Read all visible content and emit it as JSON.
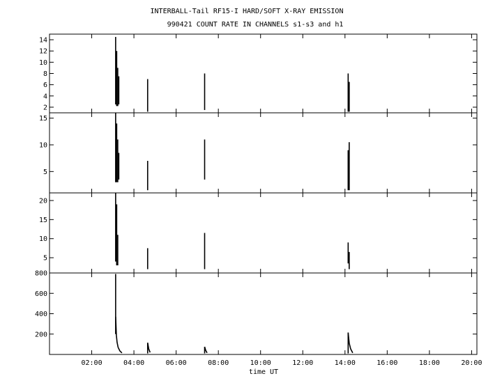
{
  "chart_data": {
    "type": "line",
    "title": "INTERBALL-Tail RF15-I HARD/SOFT X-RAY EMISSION",
    "subtitle": "990421  COUNT RATE IN CHANNELS s1-s3 and h1",
    "xlabel": "time UT",
    "xlim": [
      "00:00",
      "20:15"
    ],
    "x_ticks": [
      "02:00",
      "04:00",
      "06:00",
      "08:00",
      "10:00",
      "12:00",
      "14:00",
      "16:00",
      "18:00",
      "20:00"
    ],
    "grid": false,
    "panels": [
      {
        "name": "s1",
        "ylim": [
          1,
          15
        ],
        "y_ticks": [
          2,
          4,
          6,
          8,
          10,
          12,
          14
        ],
        "bursts": [
          {
            "x": "03:08",
            "ymin": 2.5,
            "ymax": 14.5
          },
          {
            "x": "03:11",
            "ymin": 2.2,
            "ymax": 12.0
          },
          {
            "x": "03:14",
            "ymin": 2.2,
            "ymax": 9.0
          },
          {
            "x": "03:17",
            "ymin": 2.5,
            "ymax": 7.5
          },
          {
            "x": "04:39",
            "ymin": 1.2,
            "ymax": 7.0
          },
          {
            "x": "07:21",
            "ymin": 1.5,
            "ymax": 8.0
          },
          {
            "x": "14:09",
            "ymin": 1.2,
            "ymax": 8.0
          },
          {
            "x": "14:12",
            "ymin": 1.2,
            "ymax": 6.5
          }
        ]
      },
      {
        "name": "s2",
        "ylim": [
          1,
          16
        ],
        "y_ticks": [
          5,
          10,
          15
        ],
        "bursts": [
          {
            "x": "03:08",
            "ymin": 3.0,
            "ymax": 16.0
          },
          {
            "x": "03:11",
            "ymin": 3.0,
            "ymax": 14.0
          },
          {
            "x": "03:14",
            "ymin": 3.0,
            "ymax": 11.0
          },
          {
            "x": "03:17",
            "ymin": 3.5,
            "ymax": 8.5
          },
          {
            "x": "04:39",
            "ymin": 1.5,
            "ymax": 7.0
          },
          {
            "x": "07:21",
            "ymin": 3.5,
            "ymax": 11.0
          },
          {
            "x": "14:09",
            "ymin": 1.5,
            "ymax": 9.0
          },
          {
            "x": "14:12",
            "ymin": 1.5,
            "ymax": 10.5
          }
        ]
      },
      {
        "name": "s3",
        "ylim": [
          1,
          22
        ],
        "y_ticks": [
          5,
          10,
          15,
          20
        ],
        "bursts": [
          {
            "x": "03:08",
            "ymin": 4.0,
            "ymax": 22.0
          },
          {
            "x": "03:11",
            "ymin": 3.0,
            "ymax": 19.0
          },
          {
            "x": "03:14",
            "ymin": 3.0,
            "ymax": 11.0
          },
          {
            "x": "04:39",
            "ymin": 2.0,
            "ymax": 7.5
          },
          {
            "x": "07:21",
            "ymin": 2.0,
            "ymax": 11.5
          },
          {
            "x": "14:09",
            "ymin": 3.5,
            "ymax": 9.0
          },
          {
            "x": "14:12",
            "ymin": 2.0,
            "ymax": 6.5
          }
        ]
      },
      {
        "name": "h1",
        "ylim": [
          0,
          800
        ],
        "y_ticks": [
          200,
          400,
          600,
          800
        ],
        "bursts": [
          {
            "x": "03:08",
            "ymin": 200,
            "ymax": 790
          },
          {
            "x": "04:39",
            "ymin": 10,
            "ymax": 115
          },
          {
            "x": "07:21",
            "ymin": 10,
            "ymax": 75
          },
          {
            "x": "14:09",
            "ymin": 10,
            "ymax": 215
          }
        ],
        "decays": [
          {
            "x": [
              "03:08",
              "03:10",
              "03:12",
              "03:15",
              "03:20",
              "03:26"
            ],
            "y": [
              370,
              190,
              120,
              70,
              35,
              15
            ]
          },
          {
            "x": [
              "04:39",
              "04:42",
              "04:46"
            ],
            "y": [
              115,
              55,
              20
            ]
          },
          {
            "x": [
              "07:21",
              "07:24",
              "07:28"
            ],
            "y": [
              75,
              40,
              15
            ]
          },
          {
            "x": [
              "14:09",
              "14:12",
              "14:16",
              "14:22"
            ],
            "y": [
              215,
              110,
              55,
              15
            ]
          }
        ]
      }
    ]
  }
}
